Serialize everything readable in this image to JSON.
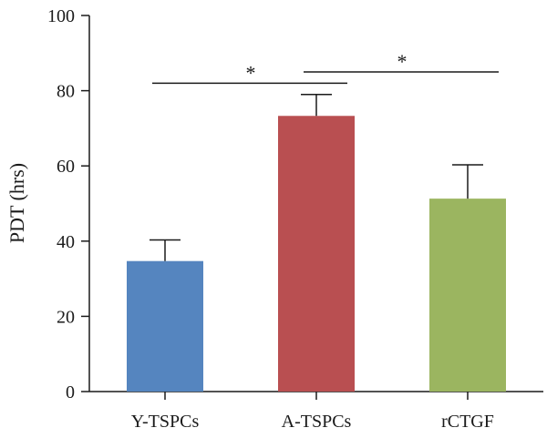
{
  "chart_data": {
    "type": "bar",
    "categories": [
      "Y-TSPCs",
      "A-TSPCs",
      "rCTGF"
    ],
    "values": [
      34.7,
      73.3,
      51.3
    ],
    "errors": [
      5.6,
      5.7,
      9.0
    ],
    "colors": [
      "#5585bf",
      "#b94f51",
      "#9bb560"
    ],
    "ylabel": "PDT (hrs)",
    "xlabel": "",
    "title": "",
    "ylim": [
      0,
      100
    ],
    "yticks": [
      0,
      20,
      40,
      60,
      80,
      100
    ],
    "grid": false,
    "legend": "none",
    "significance": [
      {
        "from": 0,
        "to": 1,
        "label": "*",
        "y": 82
      },
      {
        "from": 1,
        "to": 2,
        "label": "*",
        "y": 85
      }
    ]
  }
}
